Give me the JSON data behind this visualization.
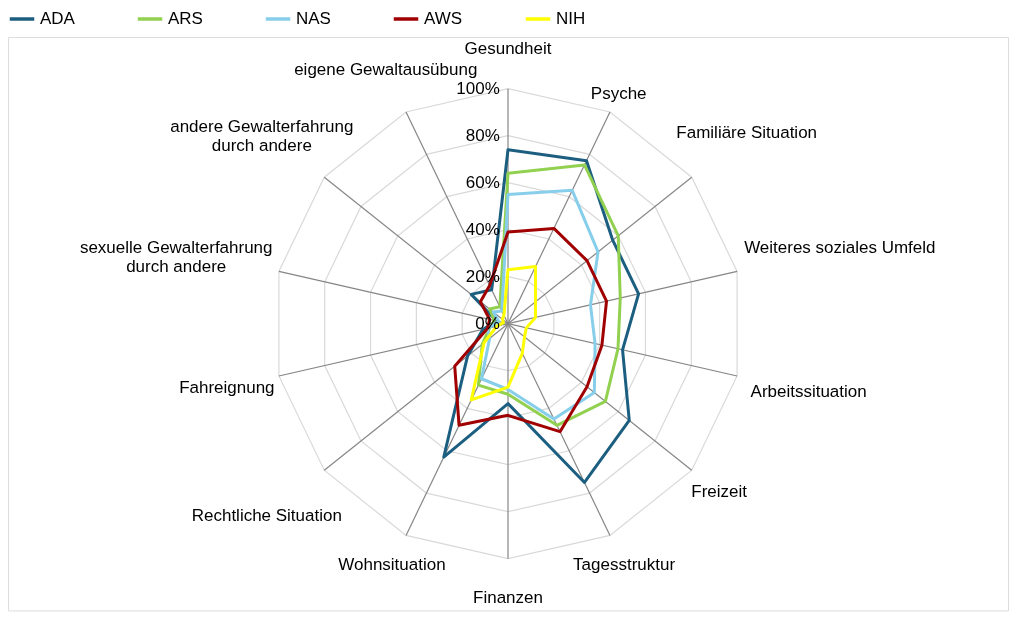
{
  "chart_data": {
    "type": "radar",
    "categories": [
      "Gesundheit",
      "Psyche",
      "Familiäre Situation",
      "Weiteres soziales Umfeld",
      "Arbeitssituation",
      "Freizeit",
      "Tagesstruktur",
      "Finanzen",
      "Wohnsituation",
      "Rechtliche Situation",
      "Fahreignung",
      "sexuelle Gewalterfahrung\ndurch andere",
      "andere Gewalterfahrung\ndurch andere",
      "eigene Gewaltausübung"
    ],
    "series": [
      {
        "name": "ADA",
        "color": "#1b5e80",
        "values": [
          74,
          77,
          57,
          57,
          50,
          66,
          75,
          34,
          63,
          22,
          11,
          5,
          20,
          16
        ]
      },
      {
        "name": "ARS",
        "color": "#92d050",
        "values": [
          64,
          75,
          60,
          49,
          48,
          53,
          48,
          30,
          29,
          14,
          8,
          6,
          10,
          8
        ]
      },
      {
        "name": "NAS",
        "color": "#87ceeb",
        "values": [
          55,
          63,
          49,
          36,
          38,
          47,
          45,
          28,
          26,
          10,
          9,
          4,
          8,
          6
        ]
      },
      {
        "name": "AWS",
        "color": "#a00000",
        "values": [
          39,
          45,
          43,
          43,
          41,
          43,
          51,
          39,
          48,
          29,
          9,
          8,
          15,
          18
        ]
      },
      {
        "name": "NIH",
        "color": "#ffff00",
        "values": [
          23,
          27,
          15,
          12,
          8,
          9,
          14,
          27,
          36,
          13,
          5,
          2,
          3,
          4
        ]
      }
    ],
    "ylim": [
      0,
      100
    ],
    "yticks": [
      {
        "value": 0,
        "label": "0%"
      },
      {
        "value": 20,
        "label": "20%"
      },
      {
        "value": 40,
        "label": "40%"
      },
      {
        "value": 60,
        "label": "60%"
      },
      {
        "value": 80,
        "label": "80%"
      },
      {
        "value": 100,
        "label": "100%"
      }
    ],
    "grid": true,
    "legend": "top"
  }
}
